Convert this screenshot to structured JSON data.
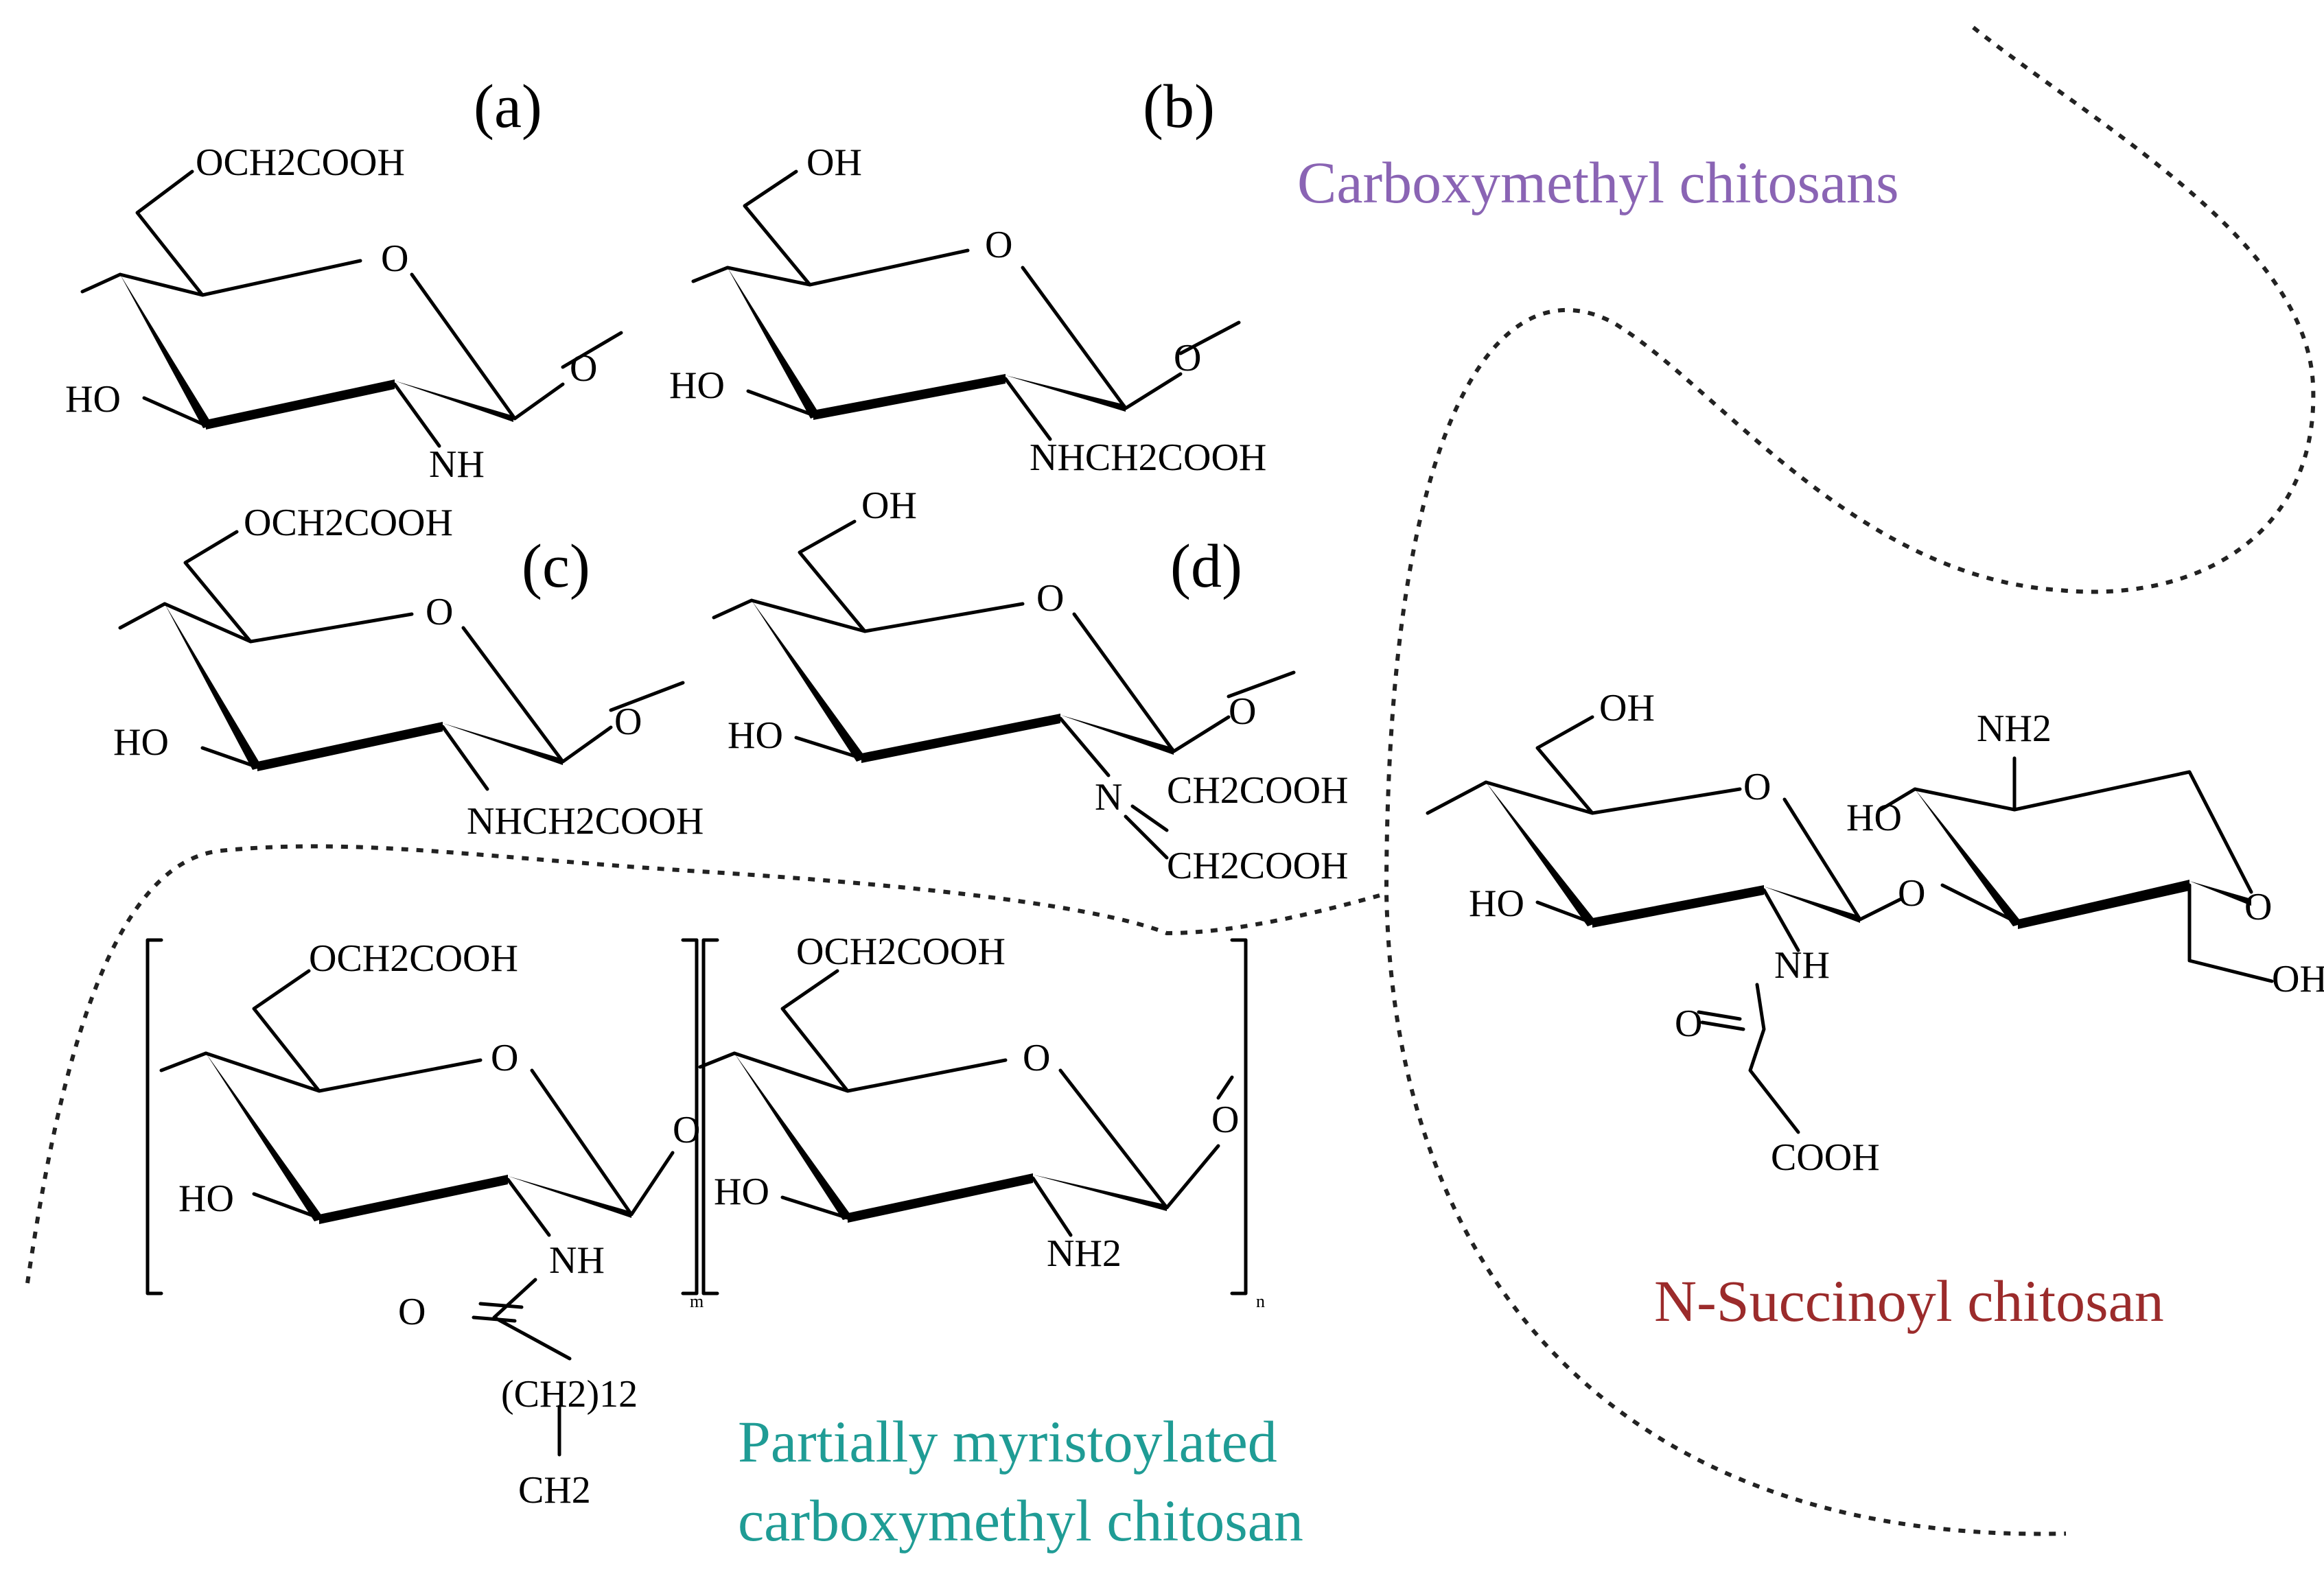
{
  "colors": {
    "carboxymethyl": "#8a64b4",
    "n_succinoyl": "#9b2b2b",
    "myristoylated": "#1f9c95"
  },
  "labels": {
    "a": "(a)",
    "b": "(b)",
    "c": "(c)",
    "d": "(d)"
  },
  "groups": {
    "carboxymethyl": "Carboxymethyl chitosans",
    "n_succinoyl": "N-Succinoyl chitosan",
    "myristoylated_line1": "Partially myristoylated",
    "myristoylated_line2": "carboxymethyl chitosan"
  },
  "atoms": {
    "a_sub": "OCH2COOH",
    "a_o": "O",
    "a_ho": "HO",
    "a_o2": "O",
    "a_nh": "NH",
    "b_oh": "OH",
    "b_o": "O",
    "b_ho": "HO",
    "b_o2": "O",
    "b_sub": "NHCH2COOH",
    "c_sub": "OCH2COOH",
    "c_o": "O",
    "c_ho": "HO",
    "c_o2": "O",
    "c_sub2": "NHCH2COOH",
    "d_oh": "OH",
    "d_o": "O",
    "d_ho": "HO",
    "d_o2": "O",
    "d_n": "N",
    "d_ch1": "CH2COOH",
    "d_ch2": "CH2COOH",
    "s_oh1": "OH",
    "s_o1": "O",
    "s_ho1": "HO",
    "s_nh": "NH",
    "s_o_carbonyl": "O",
    "s_cooh": "COOH",
    "s_nh2": "NH2",
    "s_ho2": "HO",
    "s_bridge": "O",
    "s_o2": "O",
    "s_oh2": "OH",
    "m_sub1": "OCH2COOH",
    "m_o1": "O",
    "m_ho1": "HO",
    "m_nh": "NH",
    "m_o_carbonyl": "O",
    "m_ch2n": "(CH2)12",
    "m_ch2": "CH2",
    "m_bridge": "O",
    "m_sub2": "OCH2COOH",
    "m_o2": "O",
    "m_ho2": "HO",
    "m_nh2": "NH2",
    "m_o3": "O",
    "m_sub_m": "m",
    "m_sub_n": "n"
  }
}
